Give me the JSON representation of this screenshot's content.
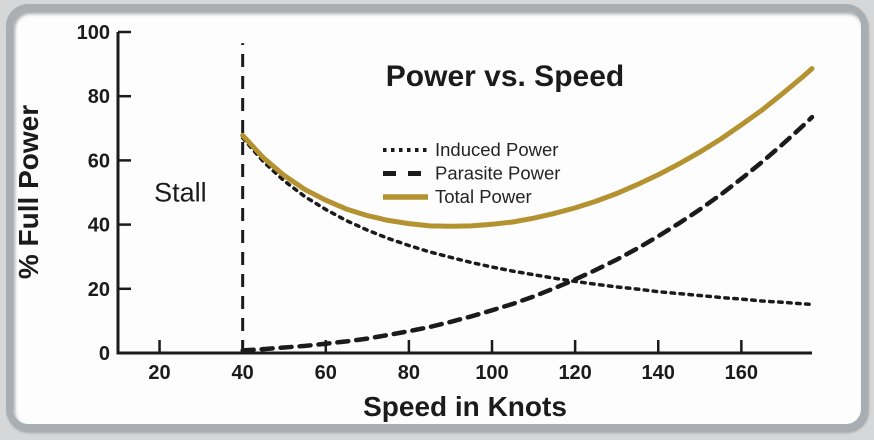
{
  "chart_data": {
    "type": "line",
    "title": "Power vs. Speed",
    "xlabel": "Speed in Knots",
    "ylabel": "% Full Power",
    "xlim": [
      10,
      177
    ],
    "ylim": [
      0,
      100
    ],
    "xticks": [
      "20",
      "40",
      "60",
      "80",
      "100",
      "120",
      "140",
      "160"
    ],
    "xtick_values": [
      20,
      40,
      60,
      80,
      100,
      120,
      140,
      160
    ],
    "yticks": [
      "0",
      "20",
      "40",
      "60",
      "80",
      "100"
    ],
    "ytick_values": [
      0,
      20,
      40,
      60,
      80,
      100
    ],
    "grid": false,
    "legend_position": "upper-center-inside",
    "x": [
      40,
      45,
      50,
      55,
      60,
      65,
      70,
      75,
      80,
      85,
      90,
      95,
      100,
      105,
      110,
      115,
      120,
      125,
      130,
      135,
      140,
      145,
      150,
      155,
      160,
      165,
      170,
      175,
      177
    ],
    "series": [
      {
        "name": "Induced Power",
        "style": "dotted",
        "color": "#1b1b1b",
        "values": [
          67.0,
          59.6,
          53.6,
          48.7,
          44.7,
          41.2,
          38.3,
          35.7,
          33.5,
          31.5,
          29.8,
          28.2,
          26.8,
          25.5,
          24.4,
          23.3,
          22.3,
          21.4,
          20.6,
          19.9,
          19.1,
          18.5,
          17.9,
          17.3,
          16.8,
          16.2,
          15.8,
          15.3,
          15.1
        ]
      },
      {
        "name": "Parasite Power",
        "style": "dashed",
        "color": "#1b1b1b",
        "values": [
          0.8,
          1.2,
          1.7,
          2.2,
          2.9,
          3.6,
          4.5,
          5.6,
          6.8,
          8.1,
          9.7,
          11.4,
          13.3,
          15.3,
          17.6,
          20.2,
          22.9,
          25.9,
          29.1,
          32.6,
          36.4,
          40.4,
          44.7,
          49.3,
          54.3,
          59.5,
          65.1,
          71.0,
          73.5
        ]
      },
      {
        "name": "Total Power",
        "style": "solid",
        "color": "#b3922f",
        "values": [
          67.8,
          60.8,
          55.3,
          50.9,
          47.6,
          44.8,
          42.8,
          41.3,
          40.3,
          39.6,
          39.5,
          39.6,
          40.1,
          40.8,
          42.0,
          43.5,
          45.2,
          47.3,
          49.7,
          52.5,
          55.5,
          58.9,
          62.6,
          66.6,
          71.1,
          75.7,
          80.9,
          86.3,
          88.6
        ]
      }
    ],
    "annotations": [
      {
        "type": "vline",
        "name": "stall-line",
        "x": 40,
        "y_from": 0,
        "y_to": 96.5,
        "style": "dashed"
      },
      {
        "type": "label",
        "name": "stall-label",
        "text": "Stall",
        "x": 25,
        "y": 50
      }
    ]
  },
  "colors": {
    "ink": "#1b1b1b",
    "total_power_gold": "#b3922f",
    "frame_gray": "#a9aeb2",
    "page_background": "#d6d7d8"
  }
}
